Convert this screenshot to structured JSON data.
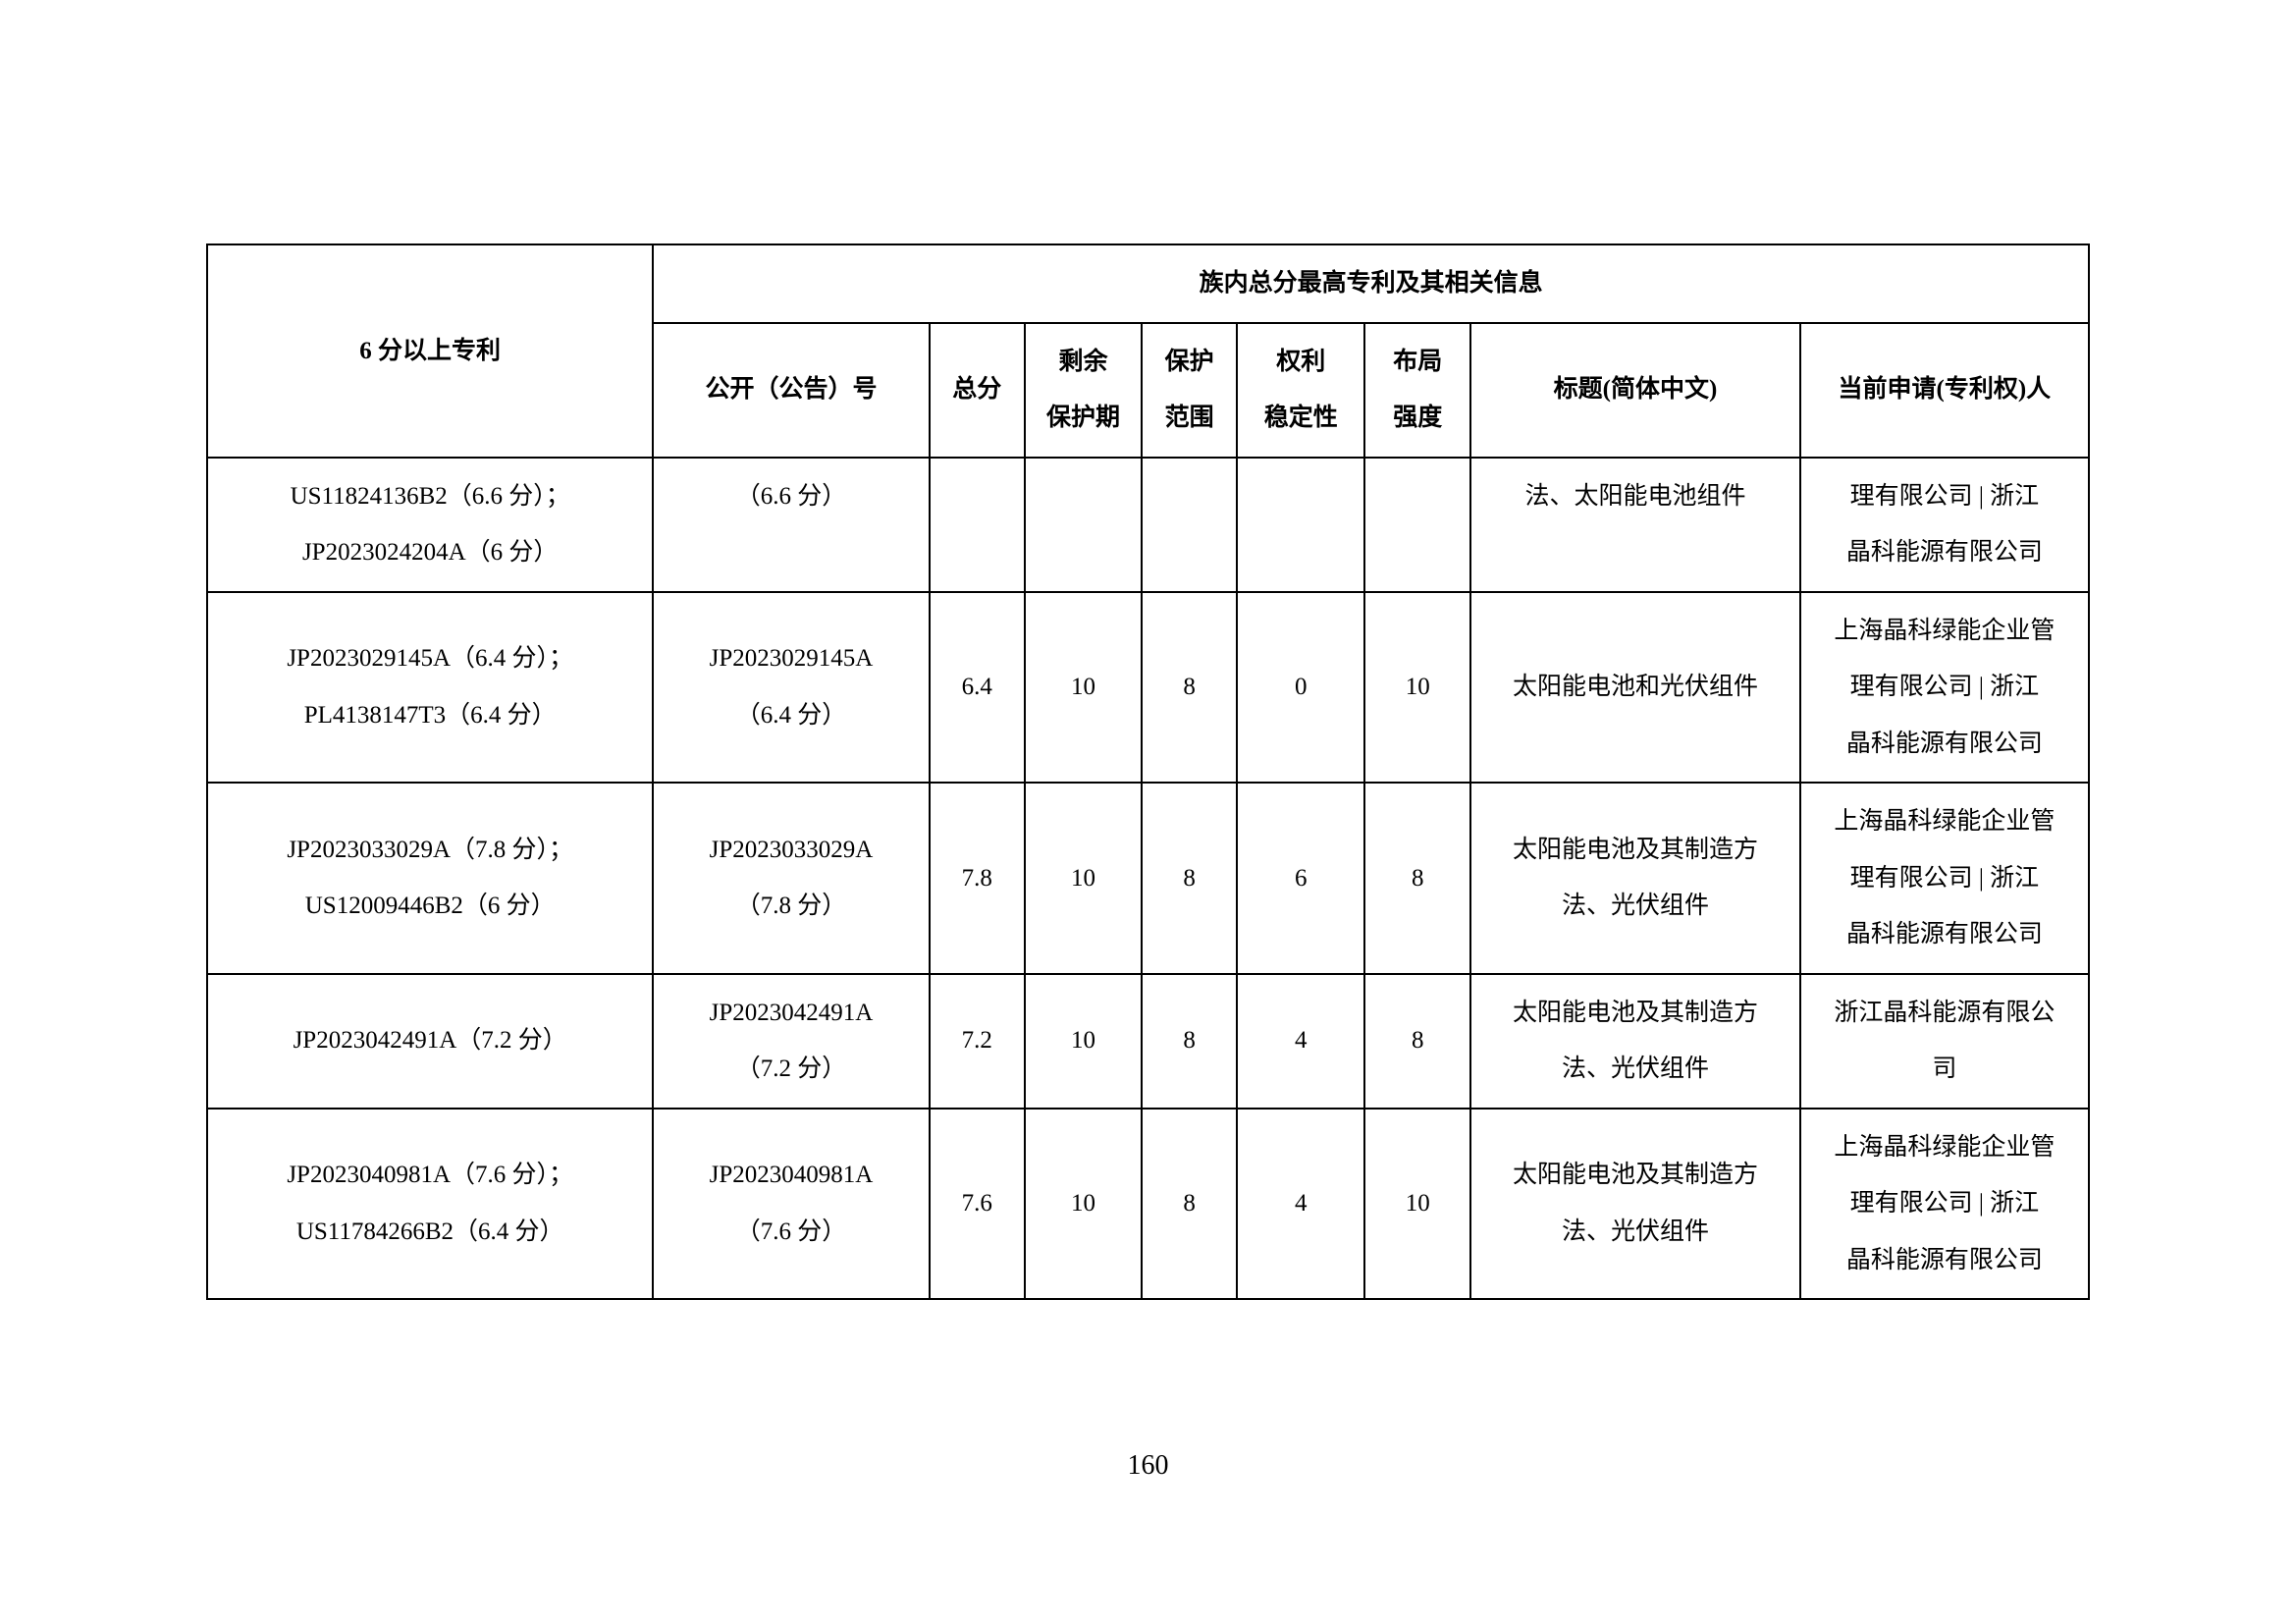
{
  "page_number": "160",
  "table": {
    "header": {
      "col_patents": "6 分以上专利",
      "group_title": "族内总分最高专利及其相关信息",
      "col_pubno": "公开（公告）号",
      "col_total": "总分",
      "col_remain_l1": "剩余",
      "col_remain_l2": "保护期",
      "col_scope_l1": "保护",
      "col_scope_l2": "范围",
      "col_stability_l1": "权利",
      "col_stability_l2": "稳定性",
      "col_layout_l1": "布局",
      "col_layout_l2": "强度",
      "col_title": "标题(简体中文)",
      "col_applicant": "当前申请(专利权)人"
    },
    "rows": [
      {
        "patents_l1": "US11824136B2（6.6 分）；",
        "patents_l2": "JP2023024204A（6 分）",
        "pubno_l1": "（6.6 分）",
        "pubno_l2": "",
        "total": "",
        "remain": "",
        "scope": "",
        "stability": "",
        "layout": "",
        "title_l1": "法、太阳能电池组件",
        "title_l2": "",
        "applicant_l1": "理有限公司 | 浙江",
        "applicant_l2": "晶科能源有限公司",
        "applicant_l3": ""
      },
      {
        "patents_l1": "JP2023029145A（6.4 分）；",
        "patents_l2": "PL4138147T3（6.4 分）",
        "pubno_l1": "JP2023029145A",
        "pubno_l2": "（6.4 分）",
        "total": "6.4",
        "remain": "10",
        "scope": "8",
        "stability": "0",
        "layout": "10",
        "title_l1": "太阳能电池和光伏组件",
        "title_l2": "",
        "applicant_l1": "上海晶科绿能企业管",
        "applicant_l2": "理有限公司 | 浙江",
        "applicant_l3": "晶科能源有限公司"
      },
      {
        "patents_l1": "JP2023033029A（7.8 分）；",
        "patents_l2": "US12009446B2（6 分）",
        "pubno_l1": "JP2023033029A",
        "pubno_l2": "（7.8 分）",
        "total": "7.8",
        "remain": "10",
        "scope": "8",
        "stability": "6",
        "layout": "8",
        "title_l1": "太阳能电池及其制造方",
        "title_l2": "法、光伏组件",
        "applicant_l1": "上海晶科绿能企业管",
        "applicant_l2": "理有限公司 | 浙江",
        "applicant_l3": "晶科能源有限公司"
      },
      {
        "patents_l1": "JP2023042491A（7.2 分）",
        "patents_l2": "",
        "pubno_l1": "JP2023042491A",
        "pubno_l2": "（7.2 分）",
        "total": "7.2",
        "remain": "10",
        "scope": "8",
        "stability": "4",
        "layout": "8",
        "title_l1": "太阳能电池及其制造方",
        "title_l2": "法、光伏组件",
        "applicant_l1": "浙江晶科能源有限公",
        "applicant_l2": "司",
        "applicant_l3": ""
      },
      {
        "patents_l1": "JP2023040981A（7.6 分）；",
        "patents_l2": "US11784266B2（6.4 分）",
        "pubno_l1": "JP2023040981A",
        "pubno_l2": "（7.6 分）",
        "total": "7.6",
        "remain": "10",
        "scope": "8",
        "stability": "4",
        "layout": "10",
        "title_l1": "太阳能电池及其制造方",
        "title_l2": "法、光伏组件",
        "applicant_l1": "上海晶科绿能企业管",
        "applicant_l2": "理有限公司 | 浙江",
        "applicant_l3": "晶科能源有限公司"
      }
    ]
  }
}
